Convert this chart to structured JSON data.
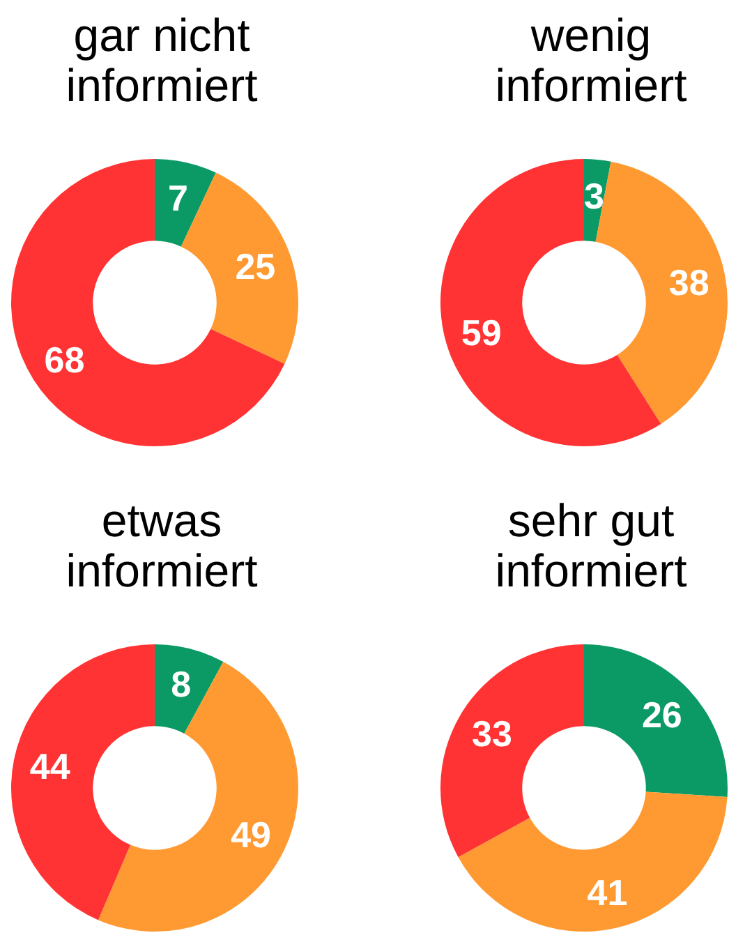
{
  "chart_data": [
    {
      "type": "donut",
      "title": "gar nicht\ninformiert",
      "categories": [
        null,
        null,
        null
      ],
      "values": [
        7,
        25,
        68
      ],
      "colors": [
        "#0b9a66",
        "#ff9a33",
        "#ff3333"
      ],
      "data_labels": true
    },
    {
      "type": "donut",
      "title": "wenig\ninformiert",
      "categories": [
        null,
        null,
        null
      ],
      "values": [
        3,
        38,
        59
      ],
      "colors": [
        "#0b9a66",
        "#ff9a33",
        "#ff3333"
      ],
      "data_labels": true
    },
    {
      "type": "donut",
      "title": "etwas\ninformiert",
      "categories": [
        null,
        null,
        null
      ],
      "values": [
        8,
        49,
        44
      ],
      "colors": [
        "#0b9a66",
        "#ff9a33",
        "#ff3333"
      ],
      "data_labels": true
    },
    {
      "type": "donut",
      "title": "sehr gut\ninformiert",
      "categories": [
        null,
        null,
        null
      ],
      "values": [
        26,
        41,
        33
      ],
      "colors": [
        "#0b9a66",
        "#ff9a33",
        "#ff3333"
      ],
      "data_labels": true
    }
  ]
}
